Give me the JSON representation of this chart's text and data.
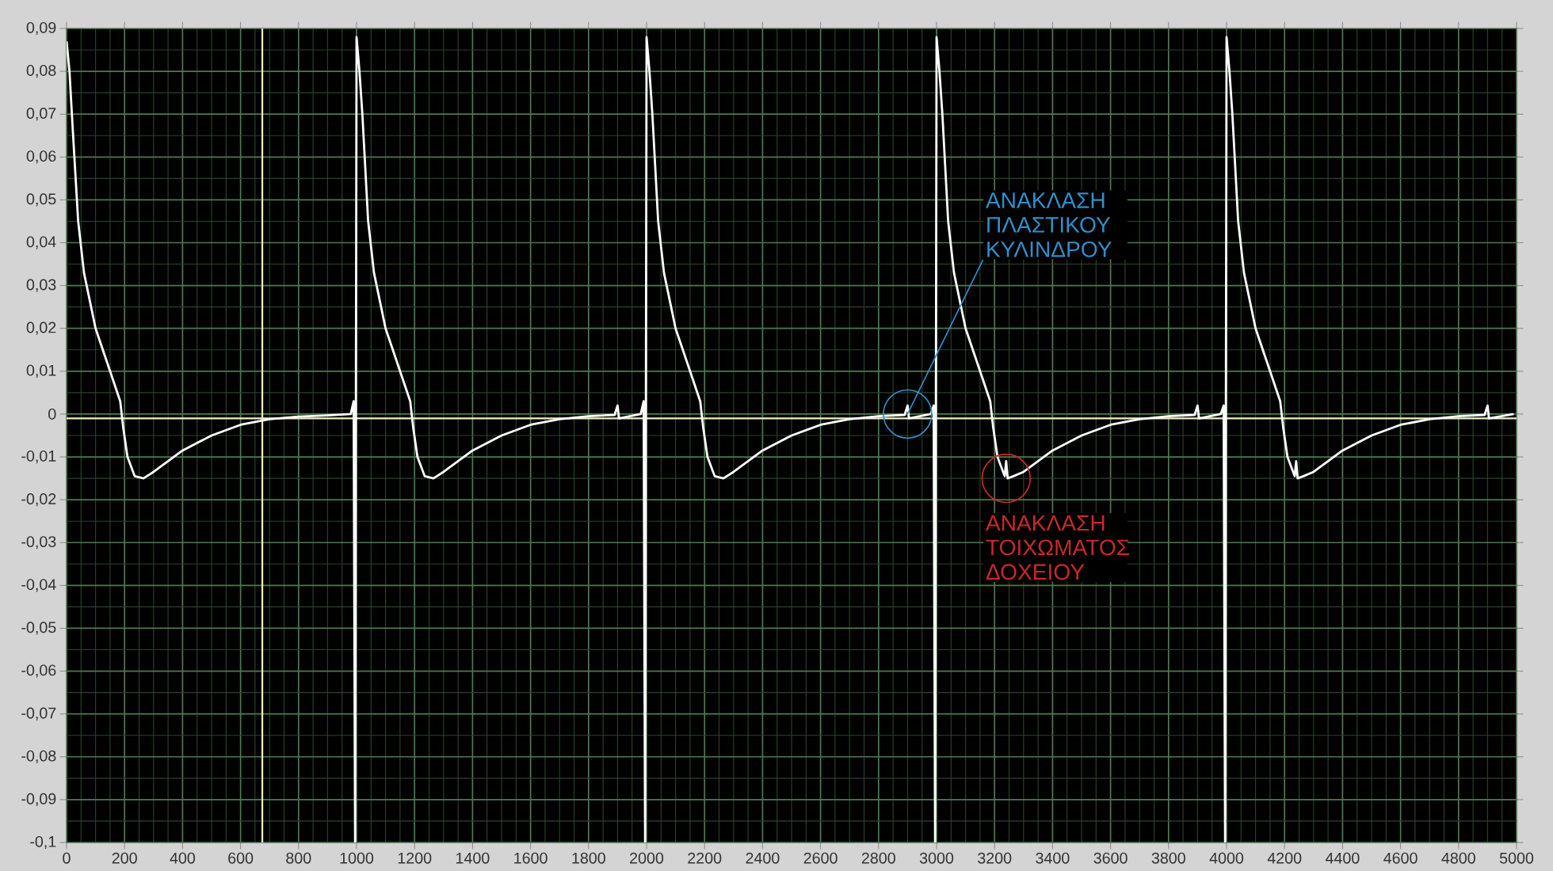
{
  "chart_data": {
    "type": "line",
    "x": [
      0,
      10,
      20,
      40,
      60,
      100,
      150,
      185,
      195,
      210,
      235,
      265,
      300,
      350,
      400,
      500,
      600,
      700,
      800,
      900,
      980,
      990,
      995,
      1000,
      1010,
      1020,
      1040,
      1060,
      1100,
      1150,
      1185,
      1195,
      1210,
      1235,
      1265,
      1300,
      1350,
      1400,
      1500,
      1600,
      1700,
      1800,
      1890,
      1900,
      1905,
      1980,
      1990,
      1995,
      2000,
      2010,
      2020,
      2040,
      2060,
      2100,
      2150,
      2185,
      2195,
      2210,
      2235,
      2265,
      2300,
      2350,
      2400,
      2500,
      2600,
      2700,
      2800,
      2890,
      2900,
      2905,
      2980,
      2990,
      2995,
      3000,
      3010,
      3020,
      3040,
      3060,
      3100,
      3150,
      3185,
      3195,
      3210,
      3235,
      3240,
      3245,
      3265,
      3300,
      3350,
      3400,
      3500,
      3600,
      3700,
      3800,
      3890,
      3900,
      3905,
      3980,
      3990,
      3995,
      4000,
      4010,
      4020,
      4040,
      4060,
      4100,
      4150,
      4185,
      4195,
      4210,
      4235,
      4240,
      4245,
      4265,
      4300,
      4350,
      4400,
      4500,
      4600,
      4700,
      4800,
      4890,
      4900,
      4905,
      4990
    ],
    "series": [
      {
        "color": "#ffffff",
        "values": [
          0.087,
          0.08,
          0.068,
          0.045,
          0.033,
          0.02,
          0.01,
          0.003,
          -0.003,
          -0.01,
          -0.0145,
          -0.015,
          -0.0135,
          -0.011,
          -0.0085,
          -0.005,
          -0.0025,
          -0.0012,
          -0.0006,
          -0.0003,
          0.0,
          0.003,
          -0.1,
          0.088,
          0.08,
          0.07,
          0.045,
          0.033,
          0.02,
          0.01,
          0.003,
          -0.003,
          -0.01,
          -0.0145,
          -0.015,
          -0.0135,
          -0.011,
          -0.0085,
          -0.005,
          -0.0025,
          -0.0012,
          -0.0005,
          -0.0002,
          0.002,
          -0.001,
          0.0,
          0.003,
          -0.1,
          0.088,
          0.08,
          0.07,
          0.045,
          0.033,
          0.02,
          0.01,
          0.003,
          -0.003,
          -0.01,
          -0.0145,
          -0.015,
          -0.0135,
          -0.011,
          -0.0085,
          -0.005,
          -0.0025,
          -0.0012,
          -0.0005,
          -0.0002,
          0.002,
          -0.001,
          0.0,
          0.002,
          -0.1,
          0.088,
          0.08,
          0.07,
          0.045,
          0.033,
          0.02,
          0.01,
          0.003,
          -0.003,
          -0.01,
          -0.0145,
          -0.011,
          -0.015,
          -0.0145,
          -0.0135,
          -0.011,
          -0.0085,
          -0.005,
          -0.0025,
          -0.0012,
          -0.0005,
          -0.0002,
          0.002,
          -0.001,
          0.0,
          0.002,
          -0.1,
          0.088,
          0.08,
          0.07,
          0.045,
          0.033,
          0.02,
          0.01,
          0.003,
          -0.003,
          -0.01,
          -0.0145,
          -0.011,
          -0.015,
          -0.0145,
          -0.0135,
          -0.011,
          -0.0085,
          -0.005,
          -0.0025,
          -0.0012,
          -0.0005,
          -0.0002,
          0.002,
          -0.001,
          0.0
        ]
      }
    ],
    "xlim": [
      0,
      5000
    ],
    "xticks": [
      0,
      200,
      400,
      600,
      800,
      1000,
      1200,
      1400,
      1600,
      1800,
      2000,
      2200,
      2400,
      2600,
      2800,
      3000,
      3200,
      3400,
      3600,
      3800,
      4000,
      4200,
      4400,
      4600,
      4800,
      5000
    ],
    "ylim": [
      -0.1,
      0.09
    ],
    "yticks": [
      {
        "value": 0.09,
        "label": "0,09"
      },
      {
        "value": 0.08,
        "label": "0,08"
      },
      {
        "value": 0.07,
        "label": "0,07"
      },
      {
        "value": 0.06,
        "label": "0,06"
      },
      {
        "value": 0.05,
        "label": "0,05"
      },
      {
        "value": 0.04,
        "label": "0,04"
      },
      {
        "value": 0.03,
        "label": "0,03"
      },
      {
        "value": 0.02,
        "label": "0,02"
      },
      {
        "value": 0.01,
        "label": "0,01"
      },
      {
        "value": 0,
        "label": "0"
      },
      {
        "value": -0.01,
        "label": "-0,01"
      },
      {
        "value": -0.02,
        "label": "-0,02"
      },
      {
        "value": -0.03,
        "label": "-0,03"
      },
      {
        "value": -0.04,
        "label": "-0,04"
      },
      {
        "value": -0.05,
        "label": "-0,05"
      },
      {
        "value": -0.06,
        "label": "-0,06"
      },
      {
        "value": -0.07,
        "label": "-0,07"
      },
      {
        "value": -0.08,
        "label": "-0,08"
      },
      {
        "value": -0.09,
        "label": "-0,09"
      },
      {
        "value": -0.1,
        "label": "-0,1"
      }
    ],
    "grid": true,
    "ref_lines": [
      {
        "axis": "x",
        "value": 675,
        "color": "#f0f0c0"
      },
      {
        "axis": "y",
        "value": -0.001,
        "color": "#f0f0c0"
      }
    ],
    "annotations": [
      {
        "text": "ΑΝΑΚΛΑΣΗ ΠΛΑΣΤΙΚΟΥ ΚΥΛΙΝΔΡΟΥ",
        "x": 2900,
        "y": 0
      },
      {
        "text": "ΑΝΑΚΛΑΣΗ ΤΟΙΧΩΜΑΤΟΣ ΔΟΧΕΙΟΥ",
        "x": 3240,
        "y": -0.015
      }
    ]
  }
}
